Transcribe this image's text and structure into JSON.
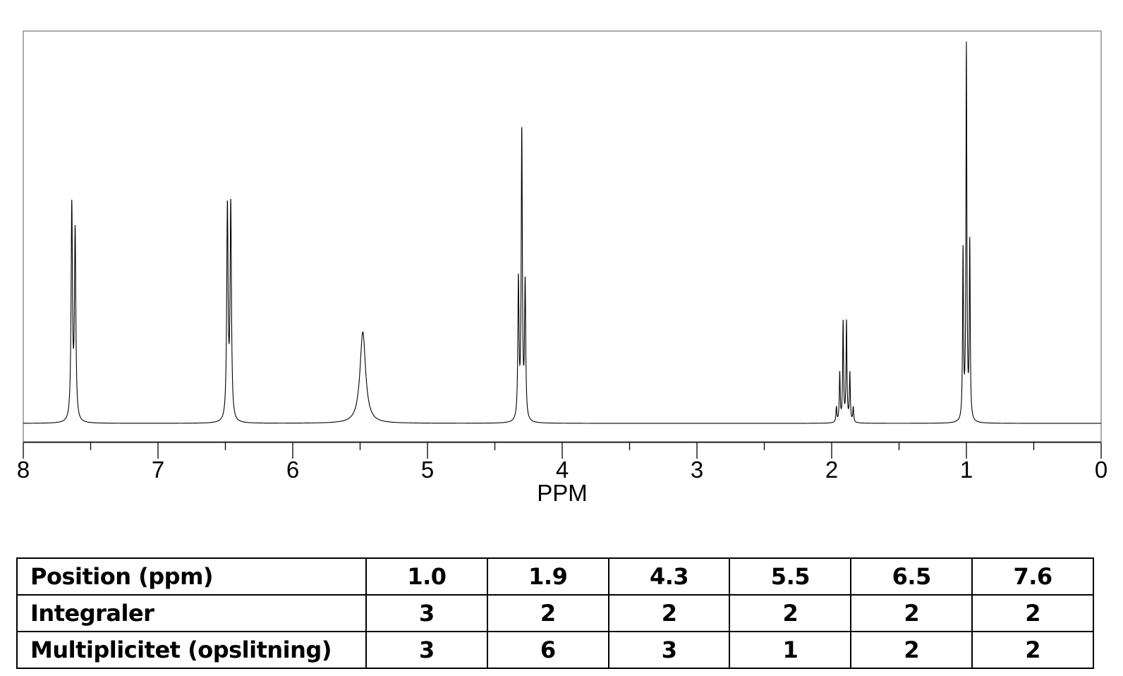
{
  "chart_data": {
    "type": "line",
    "xlabel": "PPM",
    "xlim": [
      8,
      0
    ],
    "x_ticks": [
      8,
      7,
      6,
      5,
      4,
      3,
      2,
      1,
      0
    ],
    "x_tick_labels": [
      "8",
      "7",
      "6",
      "5",
      "4",
      "3",
      "2",
      "1",
      "0"
    ],
    "minor_ticks": [
      7.5,
      6.5,
      5.5,
      4.5,
      3.5,
      2.5,
      1.5,
      0.5
    ],
    "ylim": [
      0,
      1
    ],
    "grid": false,
    "line_color": "#000000",
    "peaks": [
      {
        "center": 7.64,
        "height": 0.572,
        "width": 0.006
      },
      {
        "center": 7.615,
        "height": 0.5,
        "width": 0.006
      },
      {
        "center": 6.485,
        "height": 0.568,
        "width": 0.006
      },
      {
        "center": 6.46,
        "height": 0.572,
        "width": 0.006
      },
      {
        "center": 5.48,
        "height": 0.245,
        "width": 0.025
      },
      {
        "center": 4.325,
        "height": 0.37,
        "width": 0.005
      },
      {
        "center": 4.3,
        "height": 0.77,
        "width": 0.005
      },
      {
        "center": 4.275,
        "height": 0.362,
        "width": 0.005
      },
      {
        "center": 1.965,
        "height": 0.04,
        "width": 0.004
      },
      {
        "center": 1.94,
        "height": 0.13,
        "width": 0.004
      },
      {
        "center": 1.915,
        "height": 0.268,
        "width": 0.004
      },
      {
        "center": 1.89,
        "height": 0.268,
        "width": 0.004
      },
      {
        "center": 1.865,
        "height": 0.13,
        "width": 0.004
      },
      {
        "center": 1.84,
        "height": 0.04,
        "width": 0.004
      },
      {
        "center": 1.025,
        "height": 0.45,
        "width": 0.004
      },
      {
        "center": 1.0,
        "height": 1.0,
        "width": 0.004
      },
      {
        "center": 0.975,
        "height": 0.472,
        "width": 0.004
      }
    ]
  },
  "table": {
    "rows": [
      {
        "label": "Position (ppm)",
        "values": [
          "1.0",
          "1.9",
          "4.3",
          "5.5",
          "6.5",
          "7.6"
        ]
      },
      {
        "label": "Integraler",
        "values": [
          "3",
          "2",
          "2",
          "2",
          "2",
          "2"
        ]
      },
      {
        "label": "Multiplicitet (opslitning)",
        "values": [
          "3",
          "6",
          "3",
          "1",
          "2",
          "2"
        ]
      }
    ]
  }
}
